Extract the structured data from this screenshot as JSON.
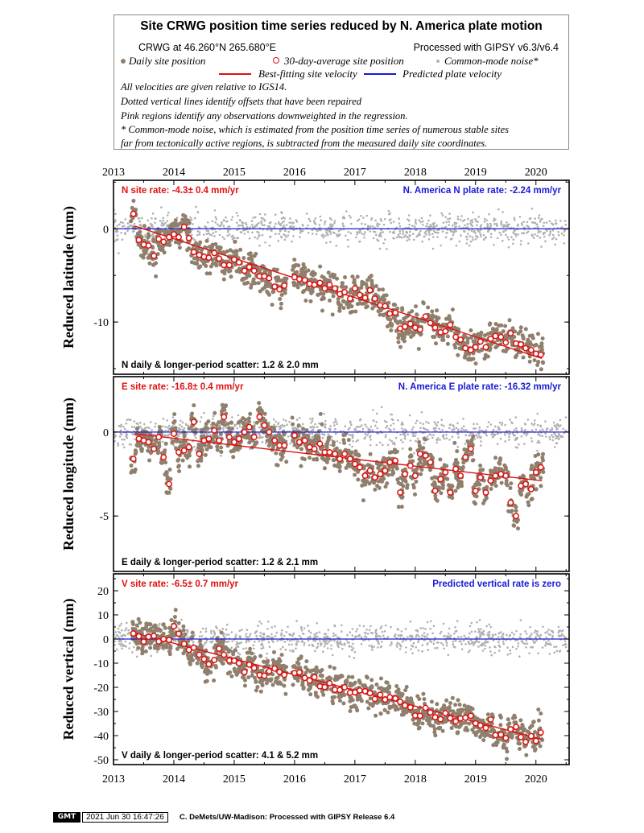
{
  "legend": {
    "title": "Site CRWG position time series reduced by N. America plate motion",
    "site_coords": "CRWG at 46.260°N 265.680°E",
    "processing": "Processed with GIPSY v6.3/v6.4",
    "daily_label": "Daily site position",
    "avg_label": "30-day-average site position",
    "noise_label": "Common-mode noise*",
    "bestfit_label": "Best-fitting site velocity",
    "plate_label": "Predicted plate velocity",
    "notes": [
      "All velocities are given relative to IGS14.",
      "Dotted vertical lines identify offsets that have been repaired",
      "Pink regions identify any observations downweighted in the regression.",
      "* Common-mode noise, which is estimated from the position time series of numerous stable sites",
      "far from tectonically active regions, is subtracted from the measured daily site coordinates."
    ]
  },
  "colors": {
    "site": "#8f7f6c",
    "avg": "#e01010",
    "noise": "#b0b0b0",
    "fit": "#e01010",
    "plate": "#1a1ad6"
  },
  "footer": {
    "logo": "GMT",
    "timestamp": "2021 Jun 30 16:47:26",
    "credit": "C. DeMets/UW-Madison: Processed with GIPSY Release 6.4"
  },
  "chart_data": [
    {
      "type": "scatter",
      "id": "north",
      "ylabel": "Reduced latitude (mm)",
      "xlim": [
        2013.0,
        2020.55
      ],
      "ylim": [
        -15.6,
        5.2
      ],
      "xticks": [
        2013,
        2014,
        2015,
        2016,
        2017,
        2018,
        2019,
        2020
      ],
      "yticks": [
        0,
        -10
      ],
      "site_rate": "N site rate:  -4.3± 0.4 mm/yr",
      "plate_rate": "N. America N plate rate: -2.24 mm/yr",
      "scatter": "N daily & longer-period scatter:   1.2 &   2.0 mm",
      "fit": {
        "x": [
          2013.35,
          2020.1
        ],
        "y": [
          0.3,
          -13.9
        ]
      },
      "plate": {
        "y": 0
      },
      "avg": {
        "x": [
          2013.33,
          2013.42,
          2013.5,
          2013.58,
          2013.67,
          2013.75,
          2013.83,
          2013.92,
          2014.0,
          2014.08,
          2014.17,
          2014.25,
          2014.33,
          2014.42,
          2014.5,
          2014.58,
          2014.67,
          2014.75,
          2014.83,
          2014.92,
          2015.0,
          2015.08,
          2015.17,
          2015.25,
          2015.33,
          2015.42,
          2015.5,
          2015.58,
          2015.67,
          2015.75,
          2015.83,
          2016.0,
          2016.08,
          2016.17,
          2016.25,
          2016.33,
          2016.42,
          2016.5,
          2016.58,
          2016.67,
          2016.75,
          2016.83,
          2016.92,
          2017.0,
          2017.08,
          2017.17,
          2017.25,
          2017.33,
          2017.42,
          2017.5,
          2017.58,
          2017.67,
          2017.75,
          2017.83,
          2017.92,
          2018.0,
          2018.08,
          2018.17,
          2018.25,
          2018.33,
          2018.42,
          2018.5,
          2018.58,
          2018.67,
          2018.75,
          2018.83,
          2018.92,
          2019.0,
          2019.08,
          2019.17,
          2019.25,
          2019.33,
          2019.42,
          2019.5,
          2019.58,
          2019.67,
          2019.75,
          2019.83,
          2019.92,
          2020.0,
          2020.08
        ],
        "y": [
          1.6,
          -1.2,
          -1.7,
          -1.8,
          -2.9,
          -1.1,
          -1.4,
          -0.9,
          -0.6,
          -0.9,
          0.2,
          -1.0,
          -2.5,
          -2.8,
          -3.0,
          -3.1,
          -2.6,
          -3.2,
          -3.9,
          -3.9,
          -3.3,
          -3.6,
          -4.5,
          -4.1,
          -4.5,
          -5.1,
          -5.1,
          -5.3,
          -6.2,
          -6.5,
          -6.1,
          -5.2,
          -5.4,
          -5.5,
          -5.9,
          -6.0,
          -5.8,
          -6.4,
          -6.0,
          -6.4,
          -7.0,
          -6.8,
          -7.5,
          -6.4,
          -7.1,
          -7.4,
          -6.6,
          -7.5,
          -8.2,
          -8.3,
          -9.1,
          -9.0,
          -10.7,
          -10.5,
          -10.2,
          -10.6,
          -10.8,
          -9.4,
          -10.1,
          -10.6,
          -11.1,
          -11.0,
          -10.3,
          -11.6,
          -11.9,
          -12.8,
          -13.0,
          -12.7,
          -12.1,
          -12.7,
          -11.8,
          -11.5,
          -11.6,
          -12.2,
          -11.2,
          -12.3,
          -12.4,
          -12.8,
          -13.0,
          -13.4,
          -13.5
        ]
      }
    },
    {
      "type": "scatter",
      "id": "east",
      "ylabel": "Reduced longitude (mm)",
      "xlim": [
        2013.0,
        2020.55
      ],
      "ylim": [
        -8.3,
        3.3
      ],
      "xticks": [
        2013,
        2014,
        2015,
        2016,
        2017,
        2018,
        2019,
        2020
      ],
      "yticks": [
        0,
        -5
      ],
      "site_rate": "E site rate:  -16.8± 0.4 mm/yr",
      "plate_rate": "N. America E plate rate: -16.32 mm/yr",
      "scatter": "E daily & longer-period scatter:   1.2 &   2.1 mm",
      "fit": {
        "x": [
          2013.35,
          2020.1
        ],
        "y": [
          -0.1,
          -2.9
        ]
      },
      "plate": {
        "y": 0
      },
      "avg": {
        "x": [
          2013.33,
          2013.42,
          2013.5,
          2013.58,
          2013.67,
          2013.75,
          2013.83,
          2013.92,
          2014.0,
          2014.08,
          2014.17,
          2014.25,
          2014.33,
          2014.42,
          2014.5,
          2014.58,
          2014.67,
          2014.75,
          2014.83,
          2014.92,
          2015.0,
          2015.08,
          2015.17,
          2015.25,
          2015.33,
          2015.42,
          2015.5,
          2015.58,
          2015.67,
          2015.75,
          2015.83,
          2016.0,
          2016.08,
          2016.17,
          2016.25,
          2016.33,
          2016.42,
          2016.5,
          2016.58,
          2016.67,
          2016.75,
          2016.83,
          2016.92,
          2017.0,
          2017.08,
          2017.17,
          2017.25,
          2017.33,
          2017.42,
          2017.5,
          2017.58,
          2017.67,
          2017.75,
          2017.83,
          2017.92,
          2018.0,
          2018.08,
          2018.17,
          2018.25,
          2018.33,
          2018.42,
          2018.5,
          2018.58,
          2018.67,
          2018.75,
          2018.83,
          2018.92,
          2019.0,
          2019.08,
          2019.17,
          2019.25,
          2019.33,
          2019.42,
          2019.5,
          2019.58,
          2019.67,
          2019.75,
          2019.83,
          2019.92,
          2020.0,
          2020.08
        ],
        "y": [
          -1.6,
          -0.4,
          -0.5,
          -0.6,
          -1.0,
          -0.3,
          -1.5,
          -3.1,
          -0.1,
          -1.2,
          -1.1,
          -0.9,
          0.6,
          -1.3,
          -0.5,
          -0.4,
          0.1,
          -0.5,
          0.9,
          -0.3,
          -0.6,
          -0.4,
          0.0,
          0.3,
          -0.3,
          0.9,
          0.4,
          0.0,
          -0.5,
          -0.8,
          -0.8,
          -0.2,
          -0.6,
          -0.5,
          -0.9,
          -1.0,
          -0.7,
          -1.2,
          -1.2,
          -1.3,
          -1.6,
          -1.3,
          -1.6,
          -1.9,
          -2.1,
          -2.6,
          -2.3,
          -2.7,
          -2.5,
          -2.3,
          -1.8,
          -1.7,
          -3.6,
          -2.5,
          -2.0,
          -2.6,
          -1.3,
          -1.4,
          -1.8,
          -3.5,
          -2.8,
          -2.4,
          -3.6,
          -2.2,
          -2.6,
          -1.5,
          -1.0,
          -3.5,
          -2.7,
          -3.6,
          -2.9,
          -2.6,
          -2.5,
          -2.6,
          -4.2,
          -5.0,
          -3.2,
          -3.1,
          -3.4,
          -2.4,
          -2.1
        ]
      }
    },
    {
      "type": "scatter",
      "id": "vertical",
      "ylabel": "Reduced vertical (mm)",
      "xlim": [
        2013.0,
        2020.55
      ],
      "ylim": [
        -52,
        27
      ],
      "xticks": [
        2013,
        2014,
        2015,
        2016,
        2017,
        2018,
        2019,
        2020
      ],
      "yticks": [
        20,
        10,
        0,
        -10,
        -20,
        -30,
        -40,
        -50
      ],
      "site_rate": "V site rate:  -6.5± 0.7 mm/yr",
      "plate_rate": "Predicted vertical rate is zero",
      "scatter": "V daily & longer-period scatter:   4.1 &   5.2 mm",
      "fit": {
        "x": [
          2013.35,
          2020.1
        ],
        "y": [
          2.5,
          -41.5
        ]
      },
      "plate": {
        "y": 0
      },
      "avg": {
        "x": [
          2013.33,
          2013.42,
          2013.5,
          2013.58,
          2013.67,
          2013.75,
          2013.83,
          2013.92,
          2014.0,
          2014.08,
          2014.17,
          2014.25,
          2014.33,
          2014.42,
          2014.5,
          2014.58,
          2014.67,
          2014.75,
          2014.83,
          2014.92,
          2015.0,
          2015.08,
          2015.17,
          2015.25,
          2015.33,
          2015.42,
          2015.5,
          2015.58,
          2015.67,
          2015.75,
          2015.83,
          2016.0,
          2016.08,
          2016.17,
          2016.25,
          2016.33,
          2016.42,
          2016.5,
          2016.58,
          2016.67,
          2016.75,
          2016.83,
          2016.92,
          2017.0,
          2017.08,
          2017.17,
          2017.25,
          2017.33,
          2017.42,
          2017.5,
          2017.58,
          2017.67,
          2017.75,
          2017.83,
          2017.92,
          2018.0,
          2018.08,
          2018.17,
          2018.25,
          2018.33,
          2018.42,
          2018.5,
          2018.58,
          2018.67,
          2018.75,
          2018.83,
          2018.92,
          2019.0,
          2019.08,
          2019.17,
          2019.25,
          2019.33,
          2019.42,
          2019.5,
          2019.58,
          2019.67,
          2019.75,
          2019.83,
          2019.92,
          2020.0,
          2020.08
        ],
        "y": [
          2.3,
          1.1,
          -1.1,
          0.9,
          1.3,
          -1.0,
          0.0,
          -0.4,
          5.3,
          2.2,
          -2.0,
          -4.5,
          -3.6,
          -6.5,
          -8.3,
          -10.4,
          -8.7,
          -4.0,
          -6.5,
          -8.9,
          -9.0,
          -10.0,
          -13.7,
          -10.6,
          -12.0,
          -14.9,
          -15.2,
          -13.3,
          -12.2,
          -13.6,
          -14.8,
          -14.1,
          -13.8,
          -16.1,
          -17.2,
          -15.8,
          -19.6,
          -19.9,
          -18.3,
          -21.0,
          -21.1,
          -20.0,
          -22.2,
          -22.1,
          -21.3,
          -21.6,
          -22.4,
          -24.8,
          -23.1,
          -25.1,
          -24.1,
          -24.6,
          -26.0,
          -27.5,
          -28.3,
          -31.7,
          -31.8,
          -28.5,
          -30.4,
          -32.4,
          -33.2,
          -30.7,
          -32.8,
          -34.1,
          -32.9,
          -32.6,
          -31.8,
          -34.9,
          -35.8,
          -36.8,
          -33.3,
          -39.8,
          -39.6,
          -41.0,
          -37.4,
          -36.4,
          -40.6,
          -42.6,
          -40.2,
          -42.2,
          -38.7
        ]
      }
    }
  ]
}
